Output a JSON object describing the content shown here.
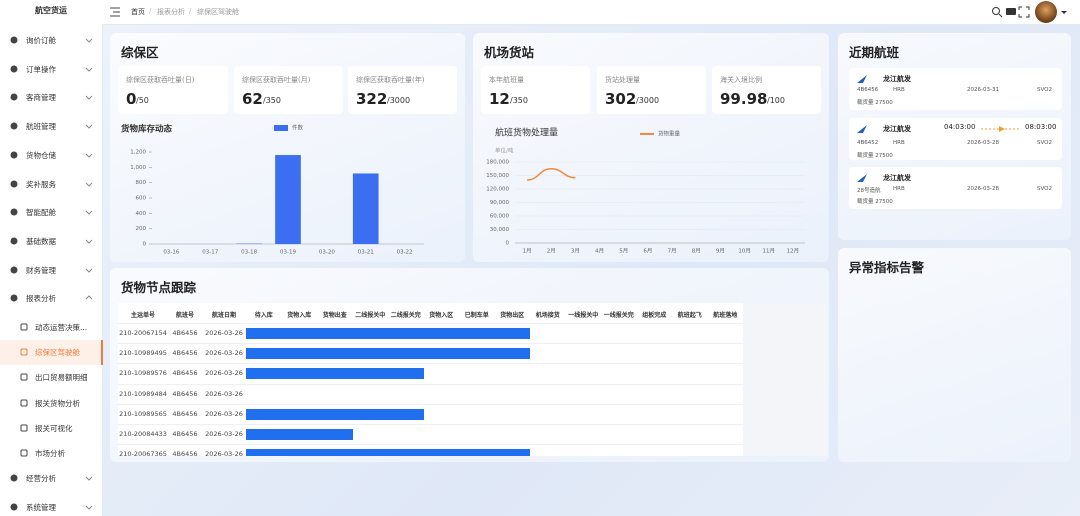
{
  "sidebar": {
    "title": "航空货运",
    "active_child": 1,
    "menu": [
      {
        "label": "询价订舱"
      },
      {
        "label": "订单操作"
      },
      {
        "label": "客商管理"
      },
      {
        "label": "航班管理"
      },
      {
        "label": "货物仓储"
      },
      {
        "label": "奖补服务"
      },
      {
        "label": "智能配舱"
      },
      {
        "label": "基础数据"
      },
      {
        "label": "财务管理"
      },
      {
        "label": "报表分析",
        "children": [
          "动态运营决策...",
          "综保区驾驶舱",
          "出口贸易额明细",
          "报关货物分析",
          "报关可视化",
          "市场分析"
        ]
      },
      {
        "label": "经营分析"
      },
      {
        "label": "系统管理"
      }
    ]
  },
  "breadcrumb": [
    "首页",
    "报表分析",
    "综保区驾驶舱"
  ],
  "bonded_zone": {
    "title": "综保区",
    "stats": [
      {
        "label": "综保区获取吞吐量(日)",
        "value": 0,
        "total": "/50"
      },
      {
        "label": "综保区获取吞吐量(月)",
        "value": 62,
        "total": "/350"
      },
      {
        "label": "综保区获取吞吐量(年)",
        "value": 322,
        "total": "/3000"
      }
    ],
    "chart_data": {
      "type": "bar",
      "title": "货物库存动态",
      "categories": [
        "03-16",
        "03-17",
        "03-18",
        "03-19",
        "03-20",
        "03-21",
        "03-22"
      ],
      "series": [
        {
          "name": "件数",
          "color": "#3b6ef0",
          "values": [
            0,
            0,
            5,
            1160,
            0,
            920,
            0
          ]
        }
      ],
      "ylim": [
        0,
        1200
      ],
      "yticks": [
        0,
        200,
        400,
        600,
        800,
        {
          "value": 1000,
          "label": "1,000"
        },
        {
          "value": 1200,
          "label": "1,200"
        }
      ],
      "grid": false
    }
  },
  "airport": {
    "title": "机场货站",
    "stats": [
      {
        "label": "本年航班量",
        "value": 12,
        "total": "/350"
      },
      {
        "label": "货站处理量",
        "value": 302,
        "total": "/3000"
      },
      {
        "label": "海关入境比例",
        "value": 99.98,
        "total": "/100"
      }
    ],
    "chart_data": {
      "type": "line",
      "title": "航班货物处理量",
      "y_label": "单位/吨",
      "categories": [
        "1月",
        "2月",
        "3月",
        "4月",
        "5月",
        "6月",
        "7月",
        "8月",
        "9月",
        "10月",
        "11月",
        "12月"
      ],
      "series": [
        {
          "name": "货物重量",
          "color": "#f08a3c",
          "values": [
            140000,
            165000,
            145000,
            null,
            null,
            null,
            null,
            null,
            null,
            null,
            null,
            null
          ]
        }
      ],
      "ylim": [
        0,
        180000
      ],
      "yticks": [
        0,
        {
          "value": 30000,
          "label": "30,000"
        },
        {
          "value": 60000,
          "label": "60,000"
        },
        {
          "value": 90000,
          "label": "90,000"
        },
        {
          "value": 120000,
          "label": "120,000"
        },
        {
          "value": 150000,
          "label": "150,000"
        },
        {
          "value": 180000,
          "label": "180,000"
        }
      ],
      "grid": true
    }
  },
  "flights": {
    "title": "近期航班",
    "cards": [
      {
        "airline": "龙江航发",
        "flight": "4B6456",
        "from": "HRB",
        "date": "2026-03-31",
        "to": "SVO2",
        "load": "载货量 27500"
      },
      {
        "airline": "龙江航发",
        "flight": "4B6452",
        "from": "HRB",
        "date": "2026-03-28",
        "to": "SVO2",
        "load": "载货量 27500",
        "dep": "04:03:00",
        "arr": "08:03:00"
      },
      {
        "airline": "龙江航发",
        "flight": "28号造航",
        "from": "HRB",
        "date": "2026-03-28",
        "to": "SVO2",
        "load": "载货量 27500"
      }
    ]
  },
  "tracking": {
    "title": "货物节点跟踪",
    "columns": [
      "主运单号",
      "航班号",
      "航班日期"
    ],
    "stages": [
      "待入库",
      "货物入库",
      "货物出查",
      "二线报关中",
      "二线报关完",
      "货物入区",
      "已制车单",
      "货物出区",
      "机场接货",
      "一线报关中",
      "一线报关完",
      "组板完成",
      "航班起飞",
      "航班落地"
    ],
    "rows": [
      [
        "210-20067154",
        "4B6456",
        "2026-03-26"
      ],
      [
        "210-10989495",
        "4B6456",
        "2026-03-26"
      ],
      [
        "210-10989576",
        "4B6456",
        "2026-03-26"
      ],
      [
        "210-10989484",
        "4B6456",
        "2026-03-26"
      ],
      [
        "210-10989565",
        "4B6456",
        "2026-03-26"
      ],
      [
        "210-20084433",
        "4B6456",
        "2026-03-26"
      ],
      [
        "210-20067365",
        "4B6456",
        "2026-03-26"
      ]
    ],
    "progress": [
      8,
      8,
      5,
      0,
      5,
      3,
      8
    ],
    "bar_color": "#1f6fef"
  },
  "alerts": {
    "title": "异常指标告警"
  }
}
